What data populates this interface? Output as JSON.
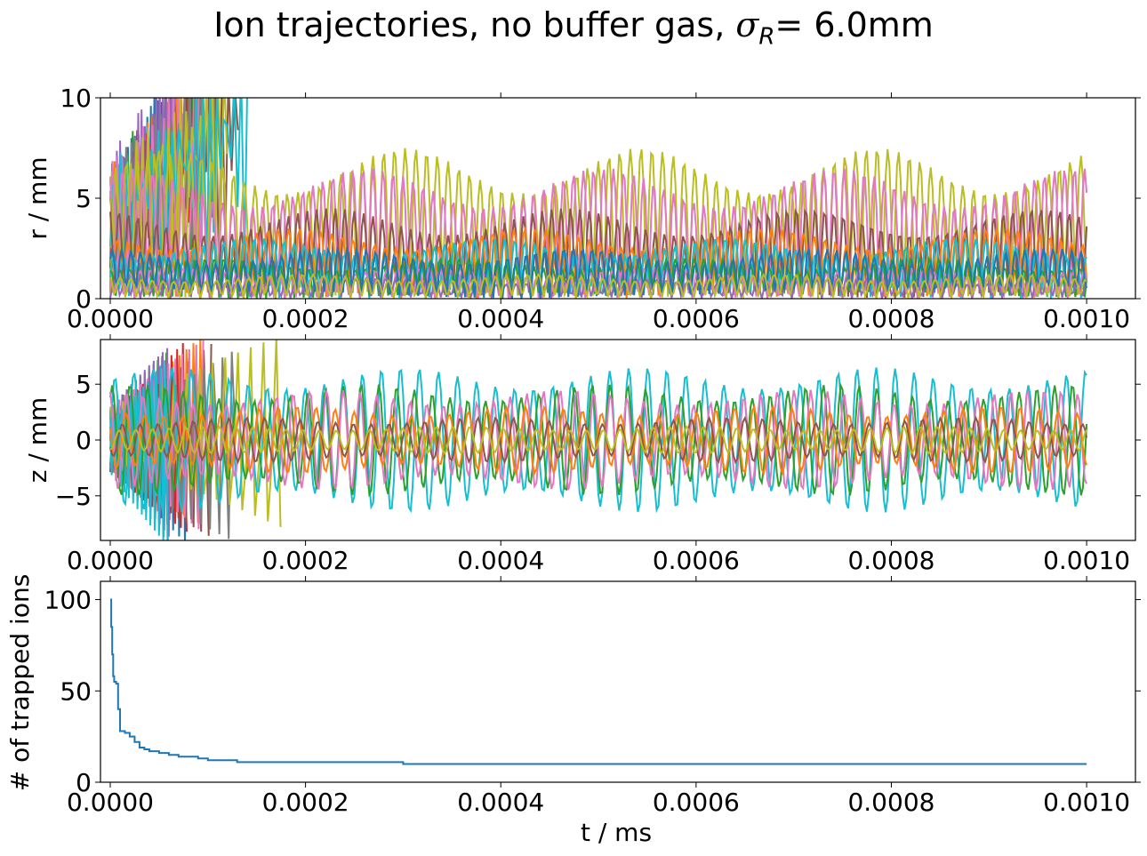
{
  "figure": {
    "title_prefix": "Ion trajectories, no buffer gas,",
    "title_symbol": "σ",
    "title_subscript": "R",
    "title_suffix": "=  6.0mm"
  },
  "chart_data": [
    {
      "id": "r",
      "type": "line",
      "ylabel": "r / mm",
      "xlabel": "",
      "xlim": [
        -1e-05,
        0.00105
      ],
      "ylim": [
        0,
        10
      ],
      "x_ticks": [
        0.0,
        0.0002,
        0.0004,
        0.0006,
        0.0008,
        0.001
      ],
      "x_tick_labels": [
        "0.0000",
        "0.0002",
        "0.0004",
        "0.0006",
        "0.0008",
        "0.0010"
      ],
      "y_ticks": [
        0,
        5,
        10
      ],
      "y_tick_labels": [
        "0",
        "5",
        "10"
      ],
      "grid": false,
      "n_trajectories": 100,
      "series_colors": [
        "#1f77b4",
        "#ff7f0e",
        "#2ca02c",
        "#d62728",
        "#9467bd",
        "#8c564b",
        "#e377c2",
        "#7f7f7f",
        "#bcbd22",
        "#17becf"
      ],
      "survivors": [
        {
          "color": "#bcbd22",
          "amplitude": 7.5
        },
        {
          "color": "#e377c2",
          "amplitude": 6.5
        },
        {
          "color": "#8c564b",
          "amplitude": 4.5
        },
        {
          "color": "#ff7f0e",
          "amplitude": 3.5
        },
        {
          "color": "#17becf",
          "amplitude": 3.0
        },
        {
          "color": "#2ca02c",
          "amplitude": 2.0
        },
        {
          "color": "#e377c2",
          "amplitude": 1.5
        },
        {
          "color": "#9467bd",
          "amplitude": 1.0
        },
        {
          "color": "#1f77b4",
          "amplitude": 2.5
        },
        {
          "color": "#bcbd22",
          "amplitude": 1.2
        }
      ],
      "lost_ion_times": [
        0.0,
        5e-06,
        1e-05,
        2e-05,
        3e-05,
        4e-05,
        5e-05,
        7e-05,
        9e-05,
        0.00012
      ]
    },
    {
      "id": "z",
      "type": "line",
      "ylabel": "z / mm",
      "xlabel": "",
      "xlim": [
        -1e-05,
        0.00105
      ],
      "ylim": [
        -9,
        9
      ],
      "x_ticks": [
        0.0,
        0.0002,
        0.0004,
        0.0006,
        0.0008,
        0.001
      ],
      "x_tick_labels": [
        "0.0000",
        "0.0002",
        "0.0004",
        "0.0006",
        "0.0008",
        "0.0010"
      ],
      "y_ticks": [
        -5,
        0,
        5
      ],
      "y_tick_labels": [
        "−5",
        "0",
        "5"
      ],
      "grid": false,
      "n_trajectories": 100,
      "series_colors": [
        "#1f77b4",
        "#ff7f0e",
        "#2ca02c",
        "#d62728",
        "#9467bd",
        "#8c564b",
        "#e377c2",
        "#7f7f7f",
        "#bcbd22",
        "#17becf"
      ],
      "survivors": [
        {
          "color": "#17becf",
          "amplitude": 6.5
        },
        {
          "color": "#2ca02c",
          "amplitude": 5.0
        },
        {
          "color": "#e377c2",
          "amplitude": 4.5
        },
        {
          "color": "#ff7f0e",
          "amplitude": 3.0
        },
        {
          "color": "#8c564b",
          "amplitude": 2.0
        },
        {
          "color": "#bcbd22",
          "amplitude": 1.2
        }
      ]
    },
    {
      "id": "trapped",
      "type": "line",
      "ylabel": "# of trapped ions",
      "xlabel": "t / ms",
      "xlim": [
        -1e-05,
        0.00105
      ],
      "ylim": [
        0,
        110
      ],
      "x_ticks": [
        0.0,
        0.0002,
        0.0004,
        0.0006,
        0.0008,
        0.001
      ],
      "x_tick_labels": [
        "0.0000",
        "0.0002",
        "0.0004",
        "0.0006",
        "0.0008",
        "0.0010"
      ],
      "y_ticks": [
        0,
        50,
        100
      ],
      "y_tick_labels": [
        "0",
        "50",
        "100"
      ],
      "grid": false,
      "series": [
        {
          "color": "#1f77b4",
          "x": [
            0.0,
            1e-06,
            2e-06,
            3e-06,
            4e-06,
            6e-06,
            8e-06,
            1e-05,
            1.5e-05,
            2e-05,
            2.5e-05,
            3e-05,
            3.5e-05,
            4e-05,
            5e-05,
            6e-05,
            7e-05,
            9e-05,
            0.0001,
            0.00012,
            0.00013,
            0.0003,
            0.0006,
            0.001
          ],
          "y": [
            100,
            85,
            70,
            58,
            55,
            54,
            40,
            28,
            27,
            25,
            22,
            19,
            18,
            17,
            16,
            15,
            14,
            13,
            12,
            12,
            11,
            10,
            10,
            10
          ]
        }
      ]
    }
  ]
}
